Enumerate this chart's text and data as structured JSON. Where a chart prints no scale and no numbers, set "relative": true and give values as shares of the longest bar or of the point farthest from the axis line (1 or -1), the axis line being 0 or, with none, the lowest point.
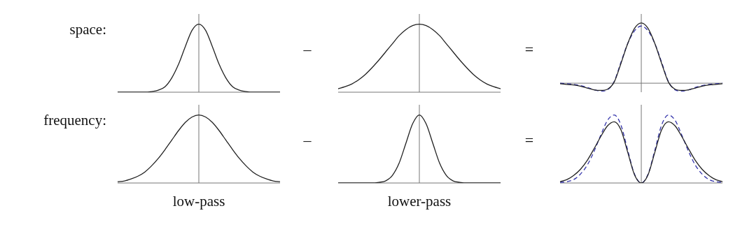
{
  "chart_data": [
    {
      "type": "line",
      "relative": true,
      "ylabel": "space:",
      "categories": [
        null,
        null,
        null,
        null,
        null,
        null,
        null,
        null,
        null,
        null,
        null,
        null,
        null,
        null,
        null,
        null,
        null,
        null,
        null,
        null,
        null,
        null,
        null,
        null,
        null
      ],
      "series": [
        {
          "color": "#222222",
          "values": [
            0,
            0,
            0,
            0,
            0,
            0.01,
            0.03,
            0.08,
            0.21,
            0.41,
            0.67,
            0.91,
            1,
            0.91,
            0.67,
            0.41,
            0.21,
            0.08,
            0.03,
            0.01,
            0,
            0,
            0,
            0,
            0
          ]
        }
      ]
    },
    {
      "type": "line",
      "relative": true,
      "annotations": [
        "–"
      ],
      "categories": [
        null,
        null,
        null,
        null,
        null,
        null,
        null,
        null,
        null,
        null,
        null,
        null,
        null,
        null,
        null,
        null,
        null,
        null,
        null,
        null,
        null,
        null,
        null,
        null,
        null
      ],
      "series": [
        {
          "color": "#222222",
          "values": [
            0.05,
            0.08,
            0.12,
            0.18,
            0.26,
            0.36,
            0.47,
            0.59,
            0.71,
            0.83,
            0.92,
            0.98,
            1,
            0.98,
            0.92,
            0.83,
            0.71,
            0.59,
            0.47,
            0.36,
            0.26,
            0.18,
            0.12,
            0.08,
            0.05
          ]
        }
      ]
    },
    {
      "type": "line",
      "relative": true,
      "annotations": [
        "="
      ],
      "categories": [
        null,
        null,
        null,
        null,
        null,
        null,
        null,
        null,
        null,
        null,
        null,
        null,
        null,
        null,
        null,
        null,
        null,
        null,
        null,
        null,
        null,
        null,
        null,
        null,
        null
      ],
      "series": [
        {
          "color": "#222222",
          "values": [
            -0.01,
            -0.02,
            -0.03,
            -0.05,
            -0.08,
            -0.11,
            -0.12,
            -0.1,
            0.02,
            0.33,
            0.66,
            0.91,
            1,
            0.91,
            0.66,
            0.33,
            0.02,
            -0.1,
            -0.12,
            -0.11,
            -0.08,
            -0.05,
            -0.03,
            -0.02,
            -0.01
          ]
        },
        {
          "color": "#3333aa",
          "line_style": "dashed",
          "values": [
            0,
            -0.01,
            -0.02,
            -0.04,
            -0.07,
            -0.11,
            -0.13,
            -0.11,
            0.03,
            0.35,
            0.66,
            0.87,
            0.95,
            0.87,
            0.66,
            0.35,
            0.03,
            -0.11,
            -0.13,
            -0.11,
            -0.07,
            -0.04,
            -0.02,
            -0.01,
            0
          ]
        }
      ]
    },
    {
      "type": "line",
      "relative": true,
      "ylabel": "frequency:",
      "xlabel": "low-pass",
      "categories": [
        null,
        null,
        null,
        null,
        null,
        null,
        null,
        null,
        null,
        null,
        null,
        null,
        null,
        null,
        null,
        null,
        null,
        null,
        null,
        null,
        null,
        null,
        null,
        null,
        null
      ],
      "series": [
        {
          "color": "#222222",
          "values": [
            0.02,
            0.03,
            0.06,
            0.1,
            0.16,
            0.25,
            0.36,
            0.49,
            0.63,
            0.77,
            0.89,
            0.97,
            1,
            0.97,
            0.89,
            0.77,
            0.63,
            0.49,
            0.36,
            0.25,
            0.16,
            0.1,
            0.06,
            0.03,
            0.02
          ]
        }
      ]
    },
    {
      "type": "line",
      "relative": true,
      "xlabel": "lower-pass",
      "annotations": [
        "–"
      ],
      "categories": [
        null,
        null,
        null,
        null,
        null,
        null,
        null,
        null,
        null,
        null,
        null,
        null,
        null,
        null,
        null,
        null,
        null,
        null,
        null,
        null,
        null,
        null,
        null,
        null,
        null
      ],
      "series": [
        {
          "color": "#222222",
          "values": [
            0,
            0,
            0,
            0,
            0,
            0,
            0.01,
            0.03,
            0.11,
            0.29,
            0.58,
            0.87,
            1,
            0.87,
            0.58,
            0.29,
            0.11,
            0.03,
            0.01,
            0,
            0,
            0,
            0,
            0,
            0
          ]
        }
      ]
    },
    {
      "type": "line",
      "relative": true,
      "annotations": [
        "="
      ],
      "categories": [
        null,
        null,
        null,
        null,
        null,
        null,
        null,
        null,
        null,
        null,
        null,
        null,
        null,
        null,
        null,
        null,
        null,
        null,
        null,
        null,
        null,
        null,
        null,
        null,
        null
      ],
      "series": [
        {
          "color": "#222222",
          "values": [
            0.02,
            0.05,
            0.11,
            0.2,
            0.33,
            0.5,
            0.68,
            0.84,
            0.9,
            0.78,
            0.45,
            0.12,
            0,
            0.12,
            0.45,
            0.78,
            0.9,
            0.84,
            0.68,
            0.5,
            0.33,
            0.2,
            0.11,
            0.05,
            0.02
          ]
        },
        {
          "color": "#3333aa",
          "line_style": "dashed",
          "values": [
            0.01,
            0.02,
            0.05,
            0.13,
            0.26,
            0.46,
            0.7,
            0.92,
            1,
            0.85,
            0.48,
            0.13,
            0,
            0.13,
            0.48,
            0.85,
            1,
            0.92,
            0.7,
            0.46,
            0.26,
            0.13,
            0.05,
            0.02,
            0.01
          ]
        }
      ]
    }
  ]
}
